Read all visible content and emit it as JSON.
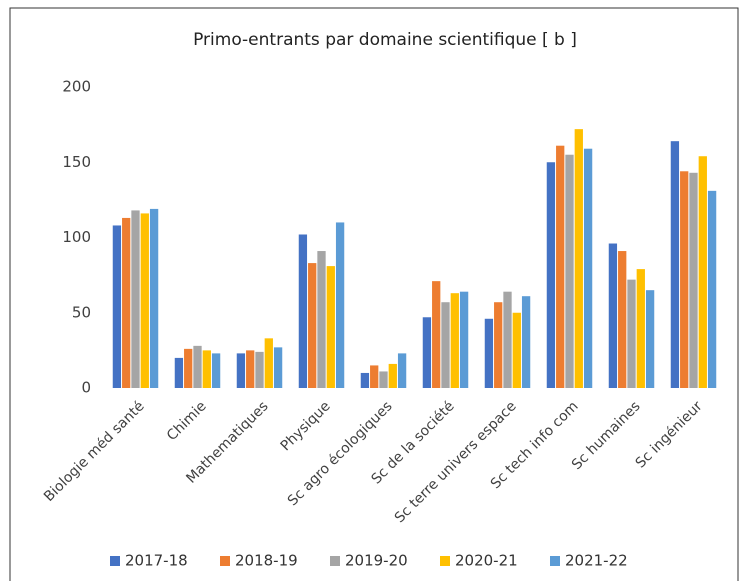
{
  "chart_data": {
    "type": "bar",
    "title": "Primo-entrants par domaine scientifique [ b ]",
    "categories": [
      "Biologie méd santé",
      "Chimie",
      "Mathematiques",
      "Physique",
      "Sc agro écologiques",
      "Sc de la société",
      "Sc terre univers espace",
      "Sc tech info com",
      "Sc humaines",
      "Sc ingénieur"
    ],
    "series": [
      {
        "name": "2017-18",
        "color": "#4472c4",
        "values": [
          108,
          20,
          23,
          102,
          10,
          47,
          46,
          150,
          96,
          164
        ]
      },
      {
        "name": "2018-19",
        "color": "#ed7d31",
        "values": [
          113,
          26,
          25,
          83,
          15,
          71,
          57,
          161,
          91,
          144
        ]
      },
      {
        "name": "2019-20",
        "color": "#a5a5a5",
        "values": [
          118,
          28,
          24,
          91,
          11,
          57,
          64,
          155,
          72,
          143
        ]
      },
      {
        "name": "2020-21",
        "color": "#ffc000",
        "values": [
          116,
          25,
          33,
          81,
          16,
          63,
          50,
          172,
          79,
          154
        ]
      },
      {
        "name": "2021-22",
        "color": "#5b9bd5",
        "values": [
          119,
          23,
          27,
          110,
          23,
          64,
          61,
          159,
          65,
          131
        ]
      }
    ],
    "ylim": [
      0,
      200
    ],
    "yticks": [
      0,
      50,
      100,
      150,
      200
    ],
    "grid": false,
    "legend": "bottom"
  }
}
